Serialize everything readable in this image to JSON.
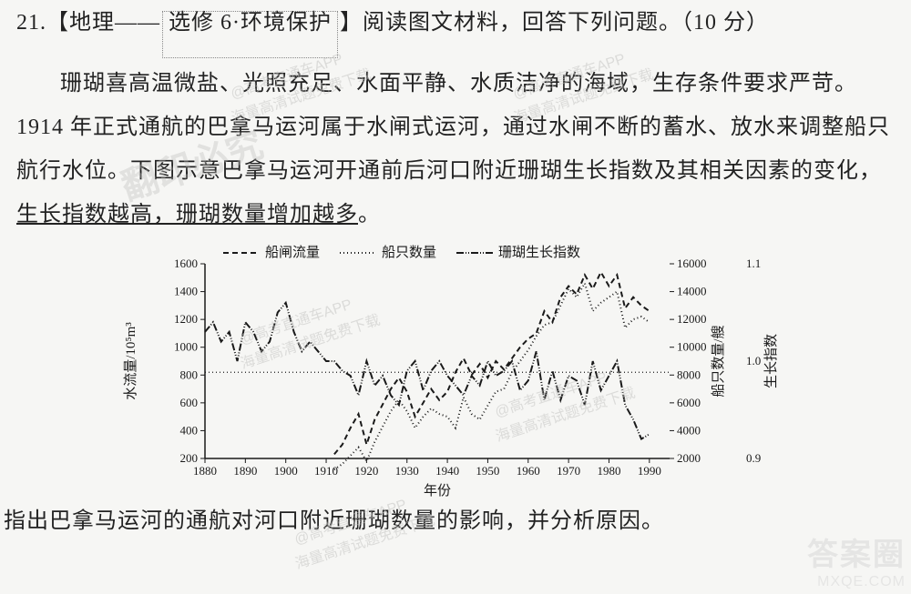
{
  "question_number": "21.",
  "bracket_open": "【",
  "subject": "地理——",
  "dotbox_text": "选修 6·环境保护",
  "bracket_close": "】",
  "prompt_tail": "阅读图文材料，回答下列问题。（10 分）",
  "paragraph_part1": "珊瑚喜高温微盐、光照充足、水面平静、水质洁净的海域，生存条件要求严苛。1914 年正式通航的巴拿马运河属于水闸式运河，通过水闸不断的蓄水、放水来调整船只航行水位。下图示意巴拿马运河开通前后河口附近珊瑚生长指数及其相关因素的变化，",
  "paragraph_under": "生长指数越高，珊瑚数量增加越多",
  "paragraph_end": "。",
  "ask_text": "指出巴拿马运河的通航对河口附近珊瑚数量的影响，并分析原因。",
  "chart": {
    "type": "line",
    "background_color": "#f6f6f4",
    "axis_color": "#1a1a1a",
    "font": "14px SimSun",
    "legend": {
      "items": [
        {
          "label": "船闸流量",
          "dash": "6,4",
          "color": "#1a1a1a"
        },
        {
          "label": "船只数量",
          "dash": "1,3",
          "color": "#1a1a1a"
        },
        {
          "label": "珊瑚生长指数",
          "dash": "8,2,1,2,1,2",
          "color": "#1a1a1a"
        }
      ]
    },
    "x": {
      "label": "年份",
      "min": 1880,
      "max": 1995,
      "ticks": [
        1880,
        1890,
        1900,
        1910,
        1920,
        1930,
        1940,
        1950,
        1960,
        1970,
        1980,
        1990
      ]
    },
    "yLeft": {
      "label": "水流量/10⁵m³",
      "min": 200,
      "max": 1600,
      "ticks": [
        200,
        400,
        600,
        800,
        1000,
        1200,
        1400,
        1600
      ]
    },
    "yRight1": {
      "label": "船只数量/艘",
      "min": 2000,
      "max": 16000,
      "ticks": [
        2000,
        4000,
        6000,
        8000,
        10000,
        12000,
        14000,
        16000
      ]
    },
    "yRight2": {
      "label": "生长指数",
      "min": 0.9,
      "max": 1.1,
      "ticks": [
        0.9,
        1.0,
        1.1
      ]
    },
    "ref_line_y_left": 820,
    "series": {
      "lock_flow": {
        "dash": "6,4",
        "width": 2,
        "color": "#1a1a1a",
        "axis": "yLeft",
        "points": [
          [
            1912,
            230
          ],
          [
            1914,
            300
          ],
          [
            1916,
            420
          ],
          [
            1918,
            520
          ],
          [
            1920,
            300
          ],
          [
            1922,
            480
          ],
          [
            1926,
            700
          ],
          [
            1928,
            780
          ],
          [
            1930,
            680
          ],
          [
            1932,
            500
          ],
          [
            1934,
            600
          ],
          [
            1936,
            700
          ],
          [
            1938,
            620
          ],
          [
            1940,
            680
          ],
          [
            1942,
            820
          ],
          [
            1944,
            920
          ],
          [
            1946,
            800
          ],
          [
            1948,
            880
          ],
          [
            1950,
            780
          ],
          [
            1952,
            900
          ],
          [
            1954,
            840
          ],
          [
            1956,
            920
          ],
          [
            1958,
            1000
          ],
          [
            1960,
            1060
          ],
          [
            1962,
            1100
          ],
          [
            1964,
            1260
          ],
          [
            1966,
            1180
          ],
          [
            1968,
            1360
          ],
          [
            1970,
            1440
          ],
          [
            1972,
            1380
          ],
          [
            1974,
            1520
          ],
          [
            1976,
            1420
          ],
          [
            1978,
            1540
          ],
          [
            1980,
            1440
          ],
          [
            1982,
            1520
          ],
          [
            1984,
            1280
          ],
          [
            1986,
            1360
          ],
          [
            1988,
            1300
          ],
          [
            1990,
            1260
          ]
        ]
      },
      "ship_count": {
        "dash": "1,3",
        "width": 2,
        "color": "#1a1a1a",
        "axis": "yRight1",
        "points": [
          [
            1912,
            1200
          ],
          [
            1914,
            1600
          ],
          [
            1916,
            2200
          ],
          [
            1918,
            2800
          ],
          [
            1920,
            1800
          ],
          [
            1922,
            3200
          ],
          [
            1926,
            5400
          ],
          [
            1928,
            6200
          ],
          [
            1930,
            5400
          ],
          [
            1932,
            4200
          ],
          [
            1934,
            5000
          ],
          [
            1936,
            5600
          ],
          [
            1938,
            5200
          ],
          [
            1940,
            5000
          ],
          [
            1942,
            4200
          ],
          [
            1944,
            6400
          ],
          [
            1946,
            5200
          ],
          [
            1948,
            4800
          ],
          [
            1950,
            5800
          ],
          [
            1952,
            6800
          ],
          [
            1954,
            7000
          ],
          [
            1956,
            8200
          ],
          [
            1958,
            9000
          ],
          [
            1960,
            9800
          ],
          [
            1962,
            10800
          ],
          [
            1964,
            11600
          ],
          [
            1966,
            11800
          ],
          [
            1968,
            13000
          ],
          [
            1970,
            14200
          ],
          [
            1972,
            13600
          ],
          [
            1974,
            14600
          ],
          [
            1976,
            12600
          ],
          [
            1978,
            13200
          ],
          [
            1980,
            13600
          ],
          [
            1982,
            14000
          ],
          [
            1984,
            11400
          ],
          [
            1986,
            12000
          ],
          [
            1988,
            12200
          ],
          [
            1990,
            11800
          ]
        ]
      },
      "growth_index": {
        "dash": "8,2,1,2,1,2",
        "width": 2,
        "color": "#1a1a1a",
        "axis": "yRight2",
        "points": [
          [
            1880,
            1.03
          ],
          [
            1882,
            1.04
          ],
          [
            1884,
            1.02
          ],
          [
            1886,
            1.03
          ],
          [
            1888,
            1.0
          ],
          [
            1890,
            1.04
          ],
          [
            1892,
            1.03
          ],
          [
            1894,
            1.01
          ],
          [
            1896,
            1.02
          ],
          [
            1898,
            1.05
          ],
          [
            1900,
            1.06
          ],
          [
            1902,
            1.03
          ],
          [
            1904,
            1.01
          ],
          [
            1906,
            1.02
          ],
          [
            1908,
            1.01
          ],
          [
            1910,
            1.0
          ],
          [
            1912,
            1.0
          ],
          [
            1914,
            0.99
          ],
          [
            1916,
            0.985
          ],
          [
            1918,
            0.965
          ],
          [
            1920,
            1.0
          ],
          [
            1922,
            0.975
          ],
          [
            1924,
            0.985
          ],
          [
            1926,
            0.965
          ],
          [
            1928,
            0.955
          ],
          [
            1930,
            0.99
          ],
          [
            1932,
            1.0
          ],
          [
            1934,
            0.97
          ],
          [
            1936,
            0.99
          ],
          [
            1938,
            1.0
          ],
          [
            1940,
            0.985
          ],
          [
            1942,
            0.975
          ],
          [
            1944,
            0.965
          ],
          [
            1946,
            0.985
          ],
          [
            1948,
            0.975
          ],
          [
            1950,
            1.0
          ],
          [
            1952,
            0.985
          ],
          [
            1954,
            0.99
          ],
          [
            1956,
            1.0
          ],
          [
            1958,
            0.97
          ],
          [
            1960,
            0.98
          ],
          [
            1962,
            1.01
          ],
          [
            1964,
            0.96
          ],
          [
            1966,
            0.99
          ],
          [
            1968,
            0.96
          ],
          [
            1970,
            0.985
          ],
          [
            1972,
            0.98
          ],
          [
            1974,
            0.955
          ],
          [
            1976,
            1.0
          ],
          [
            1978,
            0.97
          ],
          [
            1980,
            0.985
          ],
          [
            1982,
            1.0
          ],
          [
            1984,
            0.955
          ],
          [
            1986,
            0.94
          ],
          [
            1988,
            0.92
          ],
          [
            1990,
            0.925
          ]
        ]
      }
    }
  },
  "watermarks": {
    "big1": "翻印必究",
    "app": "@高考直通车APP",
    "sub": "海量高清试题免费下载",
    "site1": "答案圈",
    "site2": "MXQE.COM"
  }
}
